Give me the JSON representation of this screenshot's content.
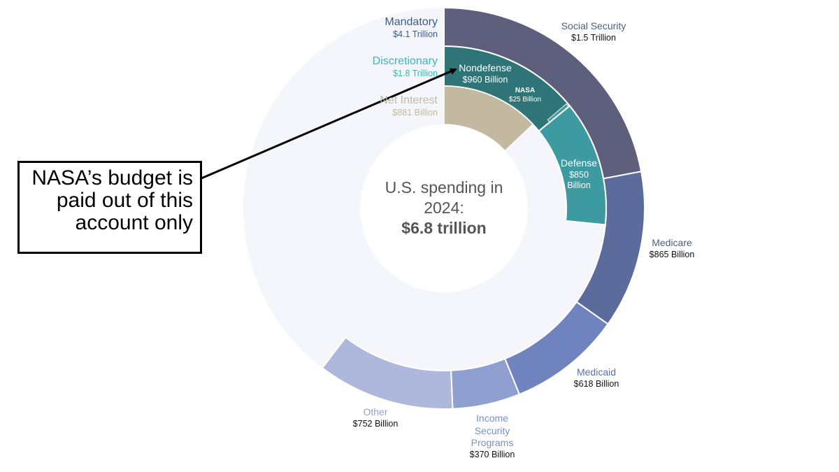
{
  "chart_data": {
    "type": "sunburst",
    "title": "U.S. spending in 2024:",
    "total": 6800,
    "total_label": "$6.8 trillion",
    "annotation": "NASA’s budget is paid out of this account only",
    "groups": [
      {
        "name": "Mandatory",
        "value": 4100,
        "value_label": "$4.1 Trillion",
        "color": "#3e5a8a",
        "children": [
          {
            "name": "Social Security",
            "value": 1500,
            "value_label": "$1.5 Trillion",
            "color": "#5d5f7d"
          },
          {
            "name": "Medicare",
            "value": 865,
            "value_label": "$865 Billion",
            "color": "#5b6b9b"
          },
          {
            "name": "Medicaid",
            "value": 618,
            "value_label": "$618 Billion",
            "color": "#6f84bf"
          },
          {
            "name": "Income Security Programs",
            "value": 370,
            "value_label": "$370 Billion",
            "color": "#8f9fcf"
          },
          {
            "name": "Other",
            "value": 752,
            "value_label": "$752 Billion",
            "color": "#aeb8dc"
          }
        ]
      },
      {
        "name": "Discretionary",
        "value": 1800,
        "value_label": "$1.8 Trillion",
        "color": "#3cb5b9",
        "children": [
          {
            "name": "Nondefense",
            "value": 960,
            "value_label": "$960 Billion",
            "color": "#2f7577",
            "children": [
              {
                "name": "NASA",
                "value": 25,
                "value_label": "$25 Billion",
                "color": "#4d9a9c"
              }
            ]
          },
          {
            "name": "Defense",
            "value": 850,
            "value_label": "$850 Billion",
            "color": "#3d9aa1"
          }
        ]
      },
      {
        "name": "Net Interest",
        "value": 881,
        "value_label": "$881 Billion",
        "color": "#c2b9a0"
      }
    ]
  }
}
